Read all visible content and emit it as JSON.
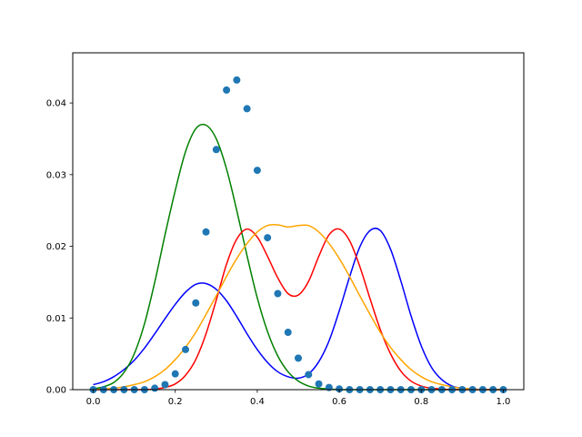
{
  "chart_data": {
    "type": "line",
    "title": "",
    "xlabel": "",
    "ylabel": "",
    "xlim": [
      -0.05,
      1.05
    ],
    "ylim": [
      0.0,
      0.047
    ],
    "grid": false,
    "legend": "none",
    "x_ticks": [
      0.0,
      0.2,
      0.4,
      0.6,
      0.8,
      1.0
    ],
    "x_tick_labels": [
      "0.0",
      "0.2",
      "0.4",
      "0.6",
      "0.8",
      "1.0"
    ],
    "y_ticks": [
      0.0,
      0.01,
      0.02,
      0.03,
      0.04
    ],
    "y_tick_labels": [
      "0.00",
      "0.01",
      "0.02",
      "0.03",
      "0.04"
    ],
    "x": [
      0.0,
      0.025,
      0.05,
      0.075,
      0.1,
      0.125,
      0.15,
      0.175,
      0.2,
      0.225,
      0.25,
      0.275,
      0.3,
      0.325,
      0.35,
      0.375,
      0.4,
      0.425,
      0.45,
      0.475,
      0.5,
      0.525,
      0.55,
      0.575,
      0.6,
      0.625,
      0.65,
      0.675,
      0.7,
      0.725,
      0.75,
      0.775,
      0.8,
      0.825,
      0.85,
      0.875,
      0.9,
      0.925,
      0.95,
      0.975,
      1.0
    ],
    "series": [
      {
        "kind": "line",
        "color": "#0000ff",
        "values": [
          0.0007,
          0.0011,
          0.0018,
          0.0028,
          0.0041,
          0.0058,
          0.0078,
          0.0099,
          0.0119,
          0.0136,
          0.0147,
          0.0148,
          0.014,
          0.0124,
          0.0102,
          0.0078,
          0.0056,
          0.0038,
          0.0025,
          0.0018,
          0.0016,
          0.0022,
          0.0039,
          0.0068,
          0.011,
          0.0157,
          0.0199,
          0.0222,
          0.0222,
          0.0196,
          0.0152,
          0.0103,
          0.0061,
          0.0031,
          0.0014,
          0.0005,
          0.0002,
          0.0001,
          0.0,
          0.0,
          0.0
        ]
      },
      {
        "kind": "line",
        "color": "#008000",
        "values": [
          0.0001,
          0.0004,
          0.001,
          0.0024,
          0.005,
          0.0092,
          0.015,
          0.0216,
          0.0278,
          0.0332,
          0.0364,
          0.0369,
          0.035,
          0.0308,
          0.025,
          0.0187,
          0.0128,
          0.0081,
          0.0047,
          0.0025,
          0.0012,
          0.0005,
          0.0002,
          0.0001,
          0.0,
          0.0,
          0.0,
          0.0,
          0.0,
          0.0,
          0.0,
          0.0,
          0.0,
          0.0,
          0.0,
          0.0,
          0.0,
          0.0,
          0.0,
          0.0,
          0.0
        ]
      },
      {
        "kind": "line",
        "color": "#ff0000",
        "values": [
          0.0,
          0.0,
          0.0,
          0.0,
          0.0,
          0.0,
          0.0001,
          0.0003,
          0.0008,
          0.002,
          0.0042,
          0.0078,
          0.0125,
          0.0175,
          0.021,
          0.0224,
          0.0213,
          0.0186,
          0.0156,
          0.0134,
          0.0132,
          0.0151,
          0.0186,
          0.0216,
          0.0224,
          0.0208,
          0.0172,
          0.0127,
          0.0084,
          0.005,
          0.0026,
          0.0012,
          0.0005,
          0.0002,
          0.0001,
          0.0,
          0.0,
          0.0,
          0.0,
          0.0,
          0.0
        ]
      },
      {
        "kind": "line",
        "color": "#ffa500",
        "values": [
          0.0,
          0.0001,
          0.0002,
          0.0004,
          0.0007,
          0.0011,
          0.0018,
          0.0028,
          0.0042,
          0.0059,
          0.008,
          0.0105,
          0.0131,
          0.0158,
          0.0183,
          0.0204,
          0.022,
          0.0229,
          0.023,
          0.0227,
          0.0229,
          0.0229,
          0.022,
          0.0204,
          0.0183,
          0.0158,
          0.0131,
          0.0105,
          0.008,
          0.0059,
          0.0042,
          0.0028,
          0.0018,
          0.0011,
          0.0007,
          0.0004,
          0.0002,
          0.0001,
          0.0,
          0.0,
          0.0
        ]
      },
      {
        "kind": "scatter",
        "color": "#1f77b4",
        "values": [
          0.0,
          0.0,
          0.0,
          0.0,
          0.0,
          0.0,
          0.0002,
          0.0007,
          0.0022,
          0.0056,
          0.0121,
          0.022,
          0.0335,
          0.0418,
          0.0432,
          0.0392,
          0.0306,
          0.0212,
          0.0134,
          0.008,
          0.0044,
          0.0021,
          0.0008,
          0.0003,
          0.0001,
          0.0,
          0.0,
          0.0,
          0.0,
          0.0,
          0.0,
          0.0,
          0.0,
          0.0,
          0.0,
          0.0,
          0.0,
          0.0,
          0.0,
          0.0,
          0.0
        ]
      }
    ]
  }
}
